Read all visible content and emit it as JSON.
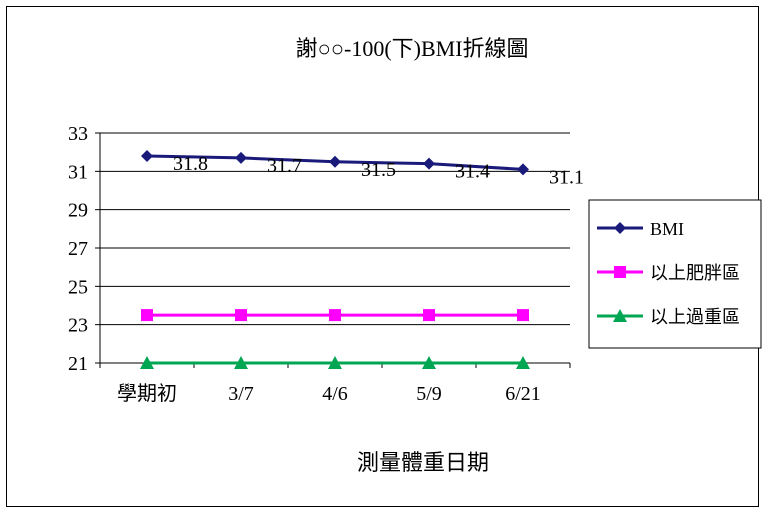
{
  "chart_data": {
    "type": "line",
    "title": "謝○○-100(下)BMI折線圖",
    "xlabel": "測量體重日期",
    "ylabel": "",
    "categories": [
      "學期初",
      "3/7",
      "4/6",
      "5/9",
      "6/21"
    ],
    "ylim": [
      21,
      33
    ],
    "yticks": [
      21,
      23,
      25,
      27,
      29,
      31,
      33
    ],
    "grid": true,
    "legend_position": "right",
    "series": [
      {
        "name": "BMI",
        "values": [
          31.8,
          31.7,
          31.5,
          31.4,
          31.1
        ],
        "color": "#1a1a7a",
        "marker": "diamond",
        "data_labels": [
          "31.8",
          "31.7",
          "31.5",
          "31.4",
          "31.1"
        ]
      },
      {
        "name": "以上肥胖區",
        "values": [
          23.5,
          23.5,
          23.5,
          23.5,
          23.5
        ],
        "color": "#ff00ff",
        "marker": "square"
      },
      {
        "name": "以上過重區",
        "values": [
          21,
          21,
          21,
          21,
          21
        ],
        "color": "#00a651",
        "marker": "triangle"
      }
    ]
  }
}
